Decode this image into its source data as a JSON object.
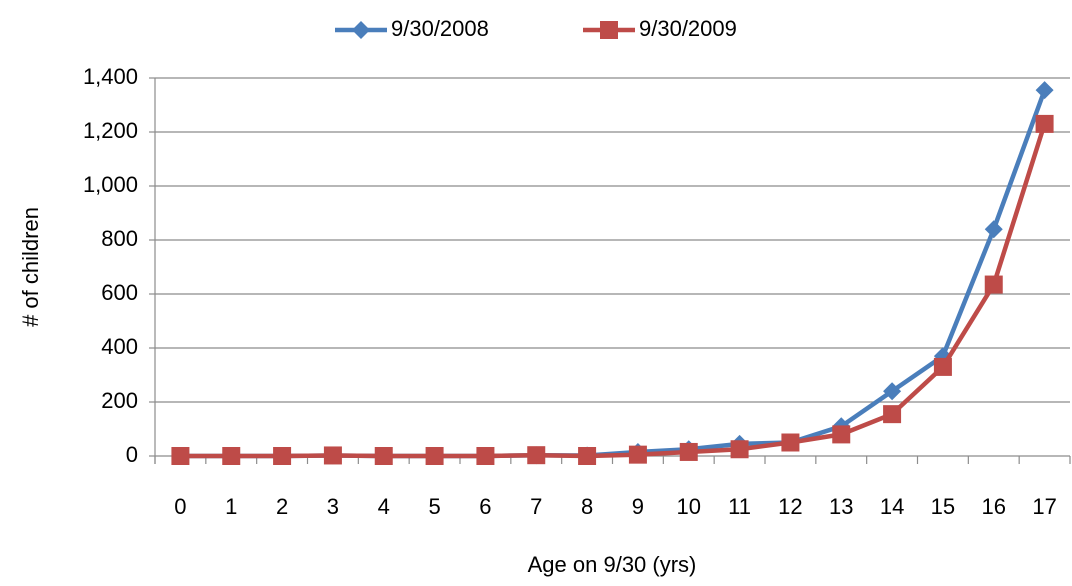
{
  "chart_data": {
    "type": "line",
    "x_label": "Age on 9/30 (yrs)",
    "y_label": "# of children",
    "categories": [
      0,
      1,
      2,
      3,
      4,
      5,
      6,
      7,
      8,
      9,
      10,
      11,
      12,
      13,
      14,
      15,
      16,
      17
    ],
    "series": [
      {
        "name": "9/30/2008",
        "color": "#4a7ebb",
        "marker": "diamond",
        "values": [
          0,
          0,
          0,
          2,
          0,
          0,
          0,
          3,
          2,
          15,
          25,
          45,
          50,
          110,
          240,
          370,
          840,
          1355
        ]
      },
      {
        "name": "9/30/2009",
        "color": "#be4b48",
        "marker": "square",
        "values": [
          0,
          0,
          0,
          2,
          0,
          0,
          0,
          3,
          0,
          5,
          15,
          25,
          50,
          80,
          155,
          330,
          635,
          1230
        ]
      }
    ],
    "ylim": [
      0,
      1400
    ],
    "yticks": [
      0,
      200,
      400,
      600,
      800,
      {
        "value": 1000,
        "label": "1,000"
      },
      {
        "value": 1200,
        "label": "1,200"
      },
      {
        "value": 1400,
        "label": "1,400"
      }
    ],
    "grid": true,
    "legend": "top"
  }
}
